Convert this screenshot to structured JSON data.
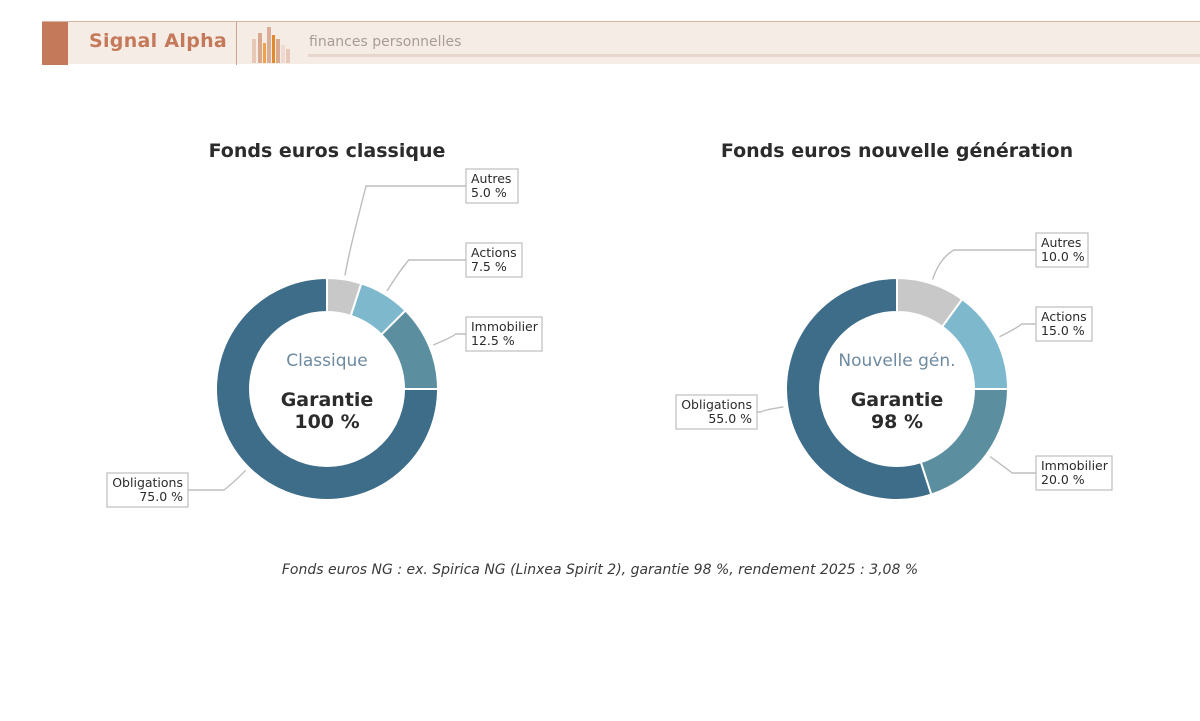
{
  "header": {
    "brand": "Signal Alpha",
    "tagline": "finances personnelles",
    "logo_icon": "bar-chart-logo-icon",
    "colors": {
      "accent": "#c47a5a",
      "banner_bg": "#f6ece6"
    }
  },
  "chart_data": [
    {
      "type": "pie",
      "title": "Fonds euros classique",
      "center": {
        "subtitle": "Classique",
        "line1": "Garantie",
        "line2": "100 %"
      },
      "slices": [
        {
          "label": "Autres",
          "value": 5.0,
          "display": "5.0 %",
          "color": "#c8c8c8"
        },
        {
          "label": "Actions",
          "value": 7.5,
          "display": "7.5 %",
          "color": "#7db8cd"
        },
        {
          "label": "Immobilier",
          "value": 12.5,
          "display": "12.5 %",
          "color": "#5b8fa0"
        },
        {
          "label": "Obligations",
          "value": 75.0,
          "display": "75.0 %",
          "color": "#3d6d89"
        }
      ]
    },
    {
      "type": "pie",
      "title": "Fonds euros nouvelle génération",
      "center": {
        "subtitle": "Nouvelle gén.",
        "line1": "Garantie",
        "line2": "98 %"
      },
      "slices": [
        {
          "label": "Autres",
          "value": 10.0,
          "display": "10.0 %",
          "color": "#c8c8c8"
        },
        {
          "label": "Actions",
          "value": 15.0,
          "display": "15.0 %",
          "color": "#7db8cd"
        },
        {
          "label": "Immobilier",
          "value": 20.0,
          "display": "20.0 %",
          "color": "#5b8fa0"
        },
        {
          "label": "Obligations",
          "value": 55.0,
          "display": "55.0 %",
          "color": "#3d6d89"
        }
      ]
    }
  ],
  "footnote": "Fonds euros NG : ex. Spirica NG (Linxea Spirit 2), garantie 98 %, rendement 2025 : 3,08 %"
}
